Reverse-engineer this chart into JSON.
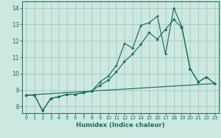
{
  "title": "",
  "xlabel": "Humidex (Indice chaleur)",
  "bg_color": "#cce8e0",
  "grid_color": "#aaccc4",
  "line_color": "#1a6e60",
  "xlim": [
    -0.5,
    23.5
  ],
  "ylim": [
    7.6,
    14.4
  ],
  "xticks": [
    0,
    1,
    2,
    3,
    4,
    5,
    6,
    7,
    8,
    9,
    10,
    11,
    12,
    13,
    14,
    15,
    16,
    17,
    18,
    19,
    20,
    21,
    22,
    23
  ],
  "yticks": [
    8,
    9,
    10,
    11,
    12,
    13,
    14
  ],
  "series1_x": [
    0,
    1,
    2,
    3,
    4,
    5,
    6,
    7,
    8,
    9,
    10,
    11,
    12,
    13,
    14,
    15,
    16,
    17,
    18,
    19,
    20,
    21,
    22,
    23
  ],
  "series1_y": [
    8.7,
    8.7,
    7.75,
    8.5,
    8.6,
    8.75,
    8.75,
    8.85,
    8.95,
    9.5,
    9.85,
    10.5,
    11.85,
    11.55,
    12.95,
    13.1,
    13.5,
    11.2,
    14.0,
    12.85,
    10.3,
    9.5,
    9.8,
    9.4
  ],
  "series2_x": [
    0,
    1,
    2,
    3,
    4,
    5,
    6,
    7,
    8,
    9,
    10,
    11,
    12,
    13,
    14,
    15,
    16,
    17,
    18,
    19,
    20,
    21,
    22,
    23
  ],
  "series2_y": [
    8.7,
    8.7,
    7.75,
    8.5,
    8.6,
    8.75,
    8.75,
    8.85,
    8.95,
    9.3,
    9.6,
    10.1,
    10.75,
    11.2,
    11.8,
    12.5,
    12.1,
    12.7,
    13.3,
    12.8,
    10.3,
    9.5,
    9.8,
    9.4
  ],
  "series3_x": [
    0,
    23
  ],
  "series3_y": [
    8.7,
    9.4
  ]
}
